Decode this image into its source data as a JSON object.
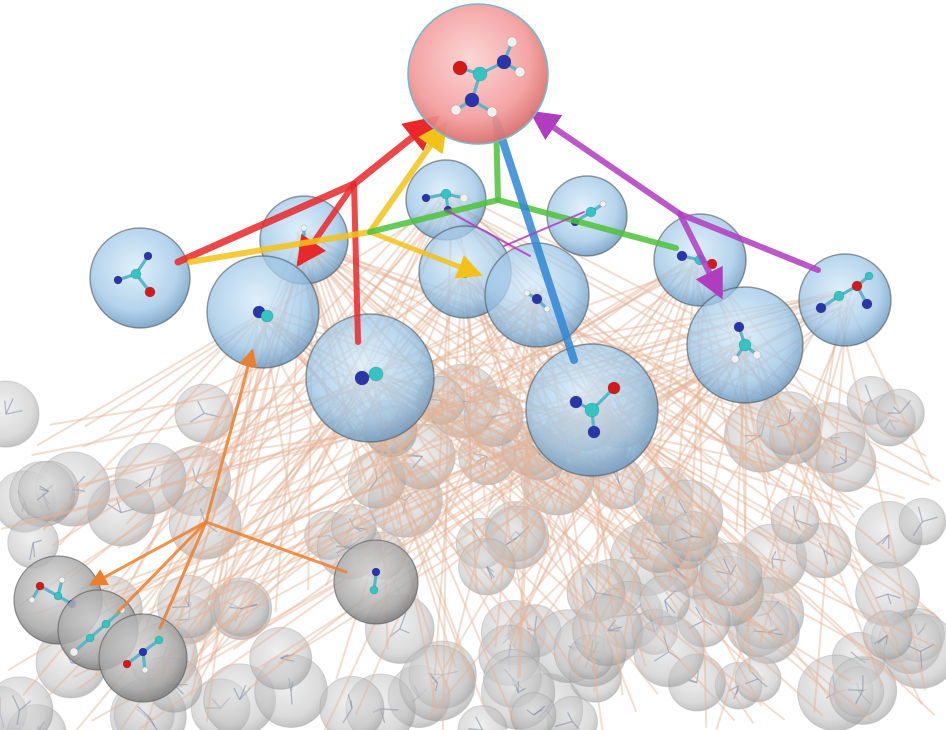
{
  "figure": {
    "description_text": "",
    "root_node": {
      "role": "target",
      "color": "#f2a0a0"
    },
    "node_colors": {
      "blue": "#9cc5e6",
      "gray": "#b9b9b9",
      "red": "#f4a3a3"
    },
    "atom_colors": {
      "carbon": "#36c3c3",
      "nitrogen": "#2a36a8",
      "oxygen": "#d11a1a",
      "hydrogen": "#f0f0f0"
    },
    "edge_colors": {
      "red": "#e8282a",
      "yellow": "#f2c21a",
      "green": "#4ec23a",
      "blue": "#2f86d6",
      "purple": "#b03cc0",
      "orange": "#ec7f2c",
      "background": "#e4b496"
    }
  }
}
